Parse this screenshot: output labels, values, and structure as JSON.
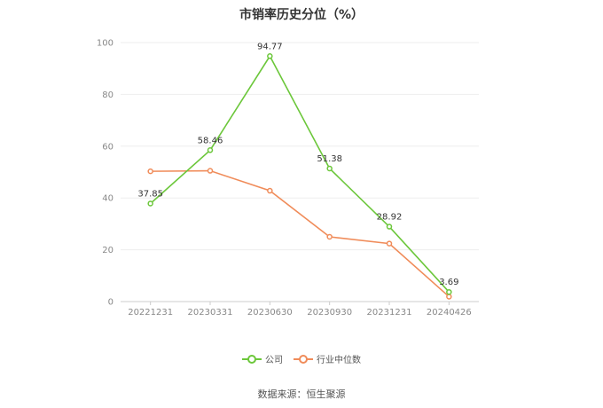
{
  "chart_data": {
    "type": "line",
    "title": "市销率历史分位（%）",
    "categories": [
      "20221231",
      "20230331",
      "20230630",
      "20230930",
      "20231231",
      "20240426"
    ],
    "ylim": [
      0,
      100
    ],
    "yticks": [
      0,
      20,
      40,
      60,
      80,
      100
    ],
    "grid": true,
    "legend_position": "bottom",
    "series": [
      {
        "name": "公司",
        "values": [
          37.85,
          58.46,
          94.77,
          51.38,
          28.92,
          3.69
        ],
        "color": "#6cc73b",
        "show_labels": true
      },
      {
        "name": "行业中位数",
        "values": [
          50.3,
          50.5,
          42.8,
          25.0,
          22.4,
          1.9
        ],
        "color": "#f08c5a",
        "show_labels": false
      }
    ],
    "source": "数据来源：恒生聚源"
  }
}
